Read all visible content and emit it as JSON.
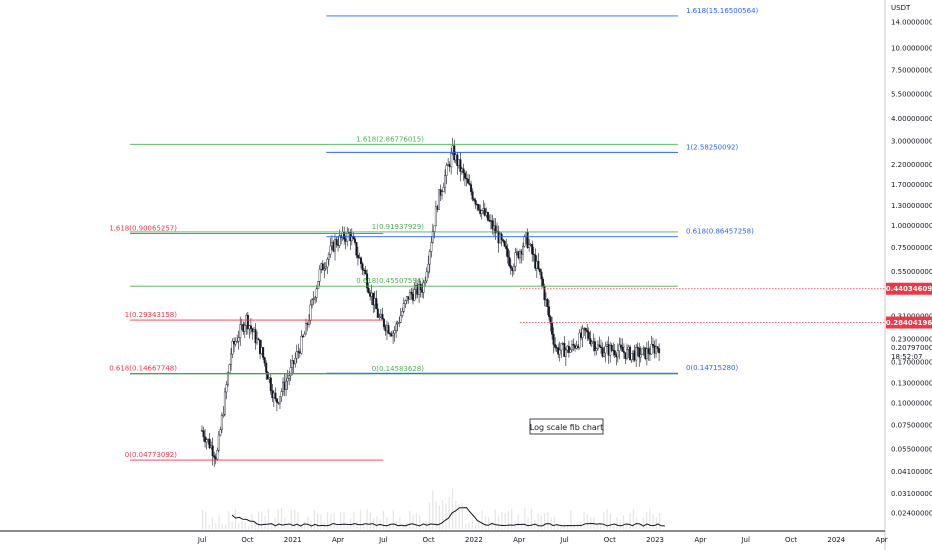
{
  "chart_data": {
    "type": "candlestick",
    "title": "",
    "currency": "USDT",
    "y_scale": "log",
    "y_tick_labels": [
      "14.00000000",
      "10.00000000",
      "7.50000000",
      "5.50000000",
      "4.00000000",
      "3.00000000",
      "2.20000000",
      "1.70000000",
      "1.30000000",
      "1.00000000",
      "0.75000000",
      "0.55000000",
      "0.31000000",
      "0.23000000",
      "0.17000000",
      "0.13000000",
      "0.10000000",
      "0.07500000",
      "0.05500000",
      "0.04100000",
      "0.03100000",
      "0.02400000"
    ],
    "y_tick_values": [
      14,
      10,
      7.5,
      5.5,
      4,
      3,
      2.2,
      1.7,
      1.3,
      1.0,
      0.75,
      0.55,
      0.31,
      0.23,
      0.17,
      0.13,
      0.1,
      0.075,
      0.055,
      0.041,
      0.031,
      0.024
    ],
    "x_tick_labels": [
      "Jul",
      "Oct",
      "2021",
      "Apr",
      "Jul",
      "Oct",
      "2022",
      "Apr",
      "Jul",
      "Oct",
      "2023",
      "Apr",
      "Jul",
      "Oct",
      "2024",
      "Apr"
    ],
    "x_tick_dates": [
      "2020-07",
      "2020-10",
      "2021-01",
      "2021-04",
      "2021-07",
      "2021-10",
      "2022-01",
      "2022-04",
      "2022-07",
      "2022-10",
      "2023-01",
      "2023-04",
      "2023-07",
      "2023-10",
      "2024-01",
      "2024-04"
    ],
    "price_badges": [
      {
        "label": "0.44034609",
        "value": 0.44034609,
        "color": "#f23645"
      },
      {
        "label": "0.28404196",
        "value": 0.28404196,
        "color": "#f23645"
      }
    ],
    "last_price": {
      "label": "0.20797000",
      "value": 0.20797,
      "countdown": "18:52:07"
    },
    "annotation": "Log scale fib chart",
    "fib_sets": [
      {
        "color": "#f23645",
        "start": "2020-06",
        "end": "2021-07",
        "levels": [
          {
            "label": "1.618(0.90065257)",
            "value": 0.90065257
          },
          {
            "label": "1(0.29343158)",
            "value": 0.29343158
          },
          {
            "label": "0.618(0.14667748)",
            "value": 0.14667748
          },
          {
            "label": "0(0.04773092)",
            "value": 0.04773092
          }
        ]
      },
      {
        "color": "#4caf50",
        "start": "2020-06",
        "end": "2023-01",
        "levels": [
          {
            "label": "1.618(2.86776015)",
            "value": 2.86776015
          },
          {
            "label": "1(0.91937929)",
            "value": 0.91937929
          },
          {
            "label": "0.618(0.45507594)",
            "value": 0.45507594
          },
          {
            "label": "0(0.14583628)",
            "value": 0.14583628
          }
        ]
      },
      {
        "color": "#2962ff",
        "start": "2021-07",
        "end": "2023-01",
        "levels": [
          {
            "label": "1.618(15.16500564)",
            "value": 15.16500564
          },
          {
            "label": "1(2.58250092)",
            "value": 2.58250092
          },
          {
            "label": "0.618(0.86457258)",
            "value": 0.86457258
          },
          {
            "label": "0(0.14715280)",
            "value": 0.1471528
          }
        ]
      }
    ],
    "series": [
      {
        "dates": [
          "2020-06",
          "2020-07",
          "2020-08",
          "2020-09",
          "2020-10",
          "2020-11",
          "2020-12",
          "2021-01",
          "2021-02",
          "2021-03",
          "2021-04",
          "2021-05",
          "2021-06",
          "2021-07",
          "2021-08",
          "2021-09",
          "2021-10",
          "2021-11",
          "2021-12",
          "2022-01",
          "2022-02",
          "2022-03",
          "2022-04",
          "2022-05",
          "2022-06",
          "2022-07",
          "2022-08",
          "2022-09",
          "2022-10",
          "2022-11",
          "2022-12",
          "2023-01"
        ],
        "close": [
          0.07,
          0.05,
          0.2,
          0.3,
          0.2,
          0.1,
          0.15,
          0.25,
          0.55,
          0.8,
          0.9,
          0.55,
          0.3,
          0.25,
          0.4,
          0.45,
          1.4,
          2.6,
          1.7,
          1.2,
          0.9,
          0.6,
          0.85,
          0.5,
          0.2,
          0.2,
          0.25,
          0.2,
          0.2,
          0.19,
          0.19,
          0.21
        ]
      }
    ],
    "grid": false
  }
}
